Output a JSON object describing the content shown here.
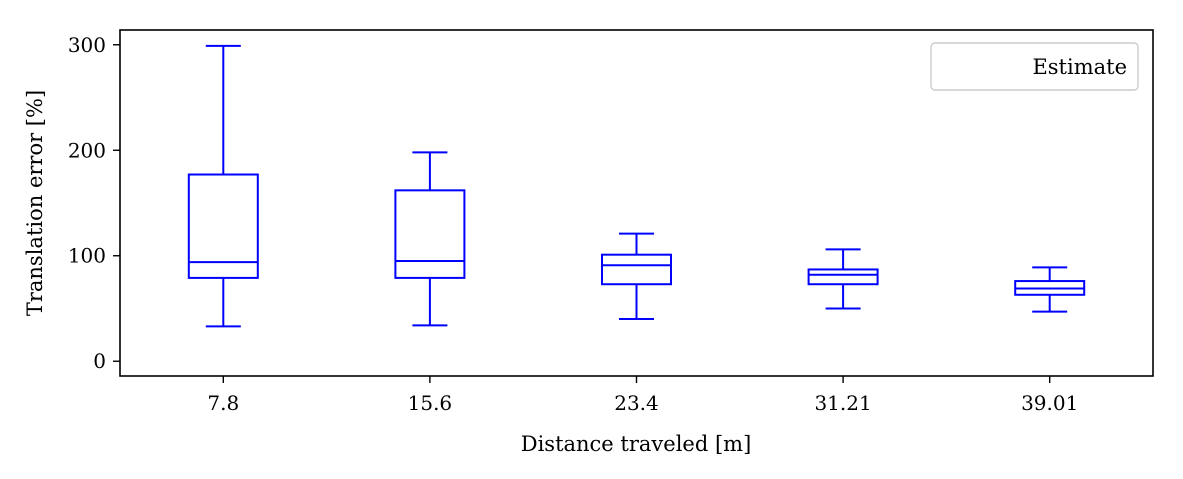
{
  "chart_data": {
    "type": "box",
    "xlabel": "Distance traveled [m]",
    "ylabel": "Translation error [%]",
    "categories": [
      "7.8",
      "15.6",
      "23.4",
      "31.21",
      "39.01"
    ],
    "y_ticks": [
      0,
      100,
      200,
      300
    ],
    "ylim": [
      -14,
      314
    ],
    "series": [
      {
        "name": "Estimate",
        "color": "#0000ff",
        "boxes": [
          {
            "whisker_low": 33,
            "q1": 79,
            "median": 94,
            "q3": 177,
            "whisker_high": 299
          },
          {
            "whisker_low": 34,
            "q1": 79,
            "median": 95,
            "q3": 162,
            "whisker_high": 198
          },
          {
            "whisker_low": 40,
            "q1": 73,
            "median": 91,
            "q3": 101,
            "whisker_high": 121
          },
          {
            "whisker_low": 50,
            "q1": 73,
            "median": 82,
            "q3": 87,
            "whisker_high": 106
          },
          {
            "whisker_low": 47,
            "q1": 63,
            "median": 69,
            "q3": 76,
            "whisker_high": 89
          }
        ]
      }
    ],
    "legend": {
      "position": "top-right"
    },
    "grid": false
  }
}
